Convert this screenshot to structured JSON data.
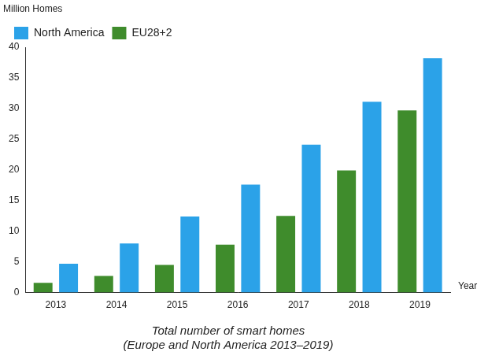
{
  "chart_data": {
    "type": "bar",
    "title": [
      "Total number of smart homes",
      "(Europe and North America 2013–2019)"
    ],
    "ylabel": "Million Homes",
    "xlabel": "Year",
    "categories": [
      "2013",
      "2014",
      "2015",
      "2016",
      "2017",
      "2018",
      "2019"
    ],
    "series": [
      {
        "name": "EU28+2",
        "color": "#3f8c2c",
        "values": [
          1.6,
          2.7,
          4.5,
          7.8,
          12.5,
          19.9,
          29.7
        ]
      },
      {
        "name": "North America",
        "color": "#2ba2e8",
        "values": [
          4.7,
          8.0,
          12.4,
          17.6,
          24.1,
          31.1,
          38.2
        ]
      }
    ],
    "ylim": [
      0,
      40
    ],
    "yticks": [
      0,
      5,
      10,
      15,
      20,
      25,
      30,
      35,
      40
    ],
    "grid": false,
    "legend": "top-left"
  }
}
